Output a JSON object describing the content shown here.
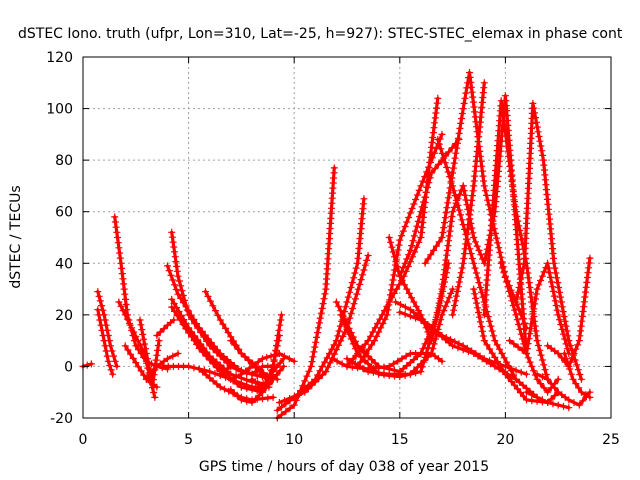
{
  "chart_data": {
    "type": "scatter",
    "title": "dSTEC Iono. truth (ufpr, Lon=310, Lat=-25, h=927): STEC-STEC_elemax in phase cont",
    "xlabel": "GPS time / hours of day 038 of year 2015",
    "ylabel": "dSTEC  / TECUs",
    "xlim": [
      0,
      25
    ],
    "ylim": [
      -20,
      120
    ],
    "xticks": [
      0,
      5,
      10,
      15,
      20,
      25
    ],
    "yticks": [
      -20,
      0,
      20,
      40,
      60,
      80,
      100,
      120
    ],
    "xtick_labels": [
      "0",
      "5",
      "10",
      "15",
      "20",
      "25"
    ],
    "ytick_labels": [
      "-20",
      "0",
      "20",
      "40",
      "60",
      "80",
      "100",
      "120"
    ],
    "grid": true,
    "marker": "+",
    "color": "#ff0000",
    "series": [
      {
        "x": [
          0.0,
          0.2,
          0.4
        ],
        "y": [
          0,
          0.5,
          1
        ]
      },
      {
        "x": [
          0.7,
          1.0,
          1.3,
          1.6
        ],
        "y": [
          29,
          20,
          8,
          0
        ]
      },
      {
        "x": [
          0.7,
          1.0,
          1.2,
          1.4
        ],
        "y": [
          22,
          10,
          2,
          -3
        ]
      },
      {
        "x": [
          1.5,
          1.8,
          2.1,
          2.5,
          3.0,
          3.5,
          4.0
        ],
        "y": [
          58,
          40,
          20,
          8,
          2,
          0,
          -1
        ]
      },
      {
        "x": [
          1.7,
          2.3,
          2.9,
          3.4
        ],
        "y": [
          25,
          15,
          5,
          -12
        ]
      },
      {
        "x": [
          2.7,
          3.0,
          3.3,
          3.6
        ],
        "y": [
          18,
          5,
          -7,
          10
        ]
      },
      {
        "x": [
          3.0,
          3.5,
          4.0,
          4.5
        ],
        "y": [
          -5,
          0,
          3,
          5
        ]
      },
      {
        "x": [
          2.0,
          3.0,
          3.5
        ],
        "y": [
          8,
          -5,
          -8
        ]
      },
      {
        "x": [
          3.5,
          4.0,
          4.3
        ],
        "y": [
          12,
          16,
          18
        ]
      },
      {
        "x": [
          4.2,
          4.5,
          5.0,
          6.0,
          7.0,
          8.0,
          9.0
        ],
        "y": [
          52,
          35,
          20,
          8,
          0,
          -3,
          -5
        ]
      },
      {
        "x": [
          4.0,
          4.5,
          5.5,
          6.5,
          7.5,
          8.5,
          9.0
        ],
        "y": [
          39,
          28,
          15,
          5,
          -2,
          -4,
          -5
        ]
      },
      {
        "x": [
          4.2,
          5.0,
          6.0,
          7.0,
          8.0,
          8.8
        ],
        "y": [
          26,
          15,
          4,
          -3,
          -6,
          -7
        ]
      },
      {
        "x": [
          4.2,
          5.0,
          6.0,
          7.0,
          8.0,
          8.8
        ],
        "y": [
          23,
          13,
          3,
          -5,
          -8,
          -8
        ]
      },
      {
        "x": [
          4.8,
          5.5,
          6.5,
          7.5,
          8.5
        ],
        "y": [
          16,
          7,
          -2,
          -8,
          -9
        ]
      },
      {
        "x": [
          5.8,
          6.5,
          7.5,
          8.5,
          9.2
        ],
        "y": [
          29,
          18,
          5,
          -3,
          -5
        ]
      },
      {
        "x": [
          3.8,
          5.0,
          6.0,
          7.0,
          7.5,
          8.5,
          9.3,
          10.0
        ],
        "y": [
          0,
          0,
          -2,
          -5,
          -3,
          3,
          5,
          2
        ]
      },
      {
        "x": [
          5.5,
          6.5,
          7.5,
          8.0,
          9.0
        ],
        "y": [
          -1,
          -8,
          -12,
          -13,
          -12
        ]
      },
      {
        "x": [
          6.5,
          7.0,
          7.5,
          8.0,
          8.5,
          9.0
        ],
        "y": [
          -3,
          0,
          -2,
          -3,
          0,
          0
        ]
      },
      {
        "x": [
          7.0,
          7.5,
          8.2,
          8.9,
          9.2,
          9.4
        ],
        "y": [
          10,
          5,
          0,
          -5,
          10,
          20
        ]
      },
      {
        "x": [
          7.5,
          8.5,
          9.0,
          9.5
        ],
        "y": [
          -8,
          -10,
          -5,
          0
        ]
      },
      {
        "x": [
          7.0,
          7.5,
          8.0,
          8.5,
          9.0,
          9.3
        ],
        "y": [
          -9,
          -13,
          -14,
          -10,
          0,
          12
        ]
      },
      {
        "x": [
          8.0,
          8.5,
          9.0,
          9.5
        ],
        "y": [
          -5,
          -8,
          -2,
          3
        ]
      },
      {
        "x": [
          9.2,
          10.0,
          10.8,
          11.5,
          11.9
        ],
        "y": [
          -20,
          -15,
          0,
          30,
          77
        ]
      },
      {
        "x": [
          9.2,
          10.0,
          11.0,
          12.0,
          13.0,
          13.3
        ],
        "y": [
          -17,
          -12,
          -5,
          10,
          40,
          65
        ]
      },
      {
        "x": [
          9.3,
          10.5,
          11.5,
          12.5,
          13.5
        ],
        "y": [
          -14,
          -10,
          -2,
          15,
          43
        ]
      },
      {
        "x": [
          11.8,
          12.5,
          13.5,
          14.5,
          15.5,
          16.5,
          17.0
        ],
        "y": [
          3,
          0,
          -1,
          0,
          5,
          5,
          2
        ]
      },
      {
        "x": [
          12.0,
          13.0,
          14.0,
          15.0,
          16.0,
          16.8
        ],
        "y": [
          25,
          8,
          0,
          -2,
          5,
          20
        ]
      },
      {
        "x": [
          12.2,
          13.0,
          14.0,
          15.0,
          16.0,
          16.8,
          17.3
        ],
        "y": [
          20,
          5,
          -3,
          -4,
          -2,
          20,
          40
        ]
      },
      {
        "x": [
          12.5,
          13.5,
          14.5,
          15.5,
          16.5,
          17.0,
          17.5
        ],
        "y": [
          3,
          -2,
          -3,
          -3,
          5,
          20,
          30
        ]
      },
      {
        "x": [
          12.5,
          13.5,
          14.5,
          15.2,
          16.0,
          16.5,
          16.8
        ],
        "y": [
          0,
          10,
          25,
          35,
          50,
          85,
          104
        ]
      },
      {
        "x": [
          13.0,
          13.8,
          14.4,
          15.0,
          16.0,
          17.0
        ],
        "y": [
          0,
          10,
          20,
          49,
          70,
          90
        ]
      },
      {
        "x": [
          14.5,
          15.0,
          16.0,
          16.5,
          17.0,
          17.5,
          18.0
        ],
        "y": [
          50,
          35,
          20,
          10,
          30,
          60,
          70
        ]
      },
      {
        "x": [
          14.8,
          15.5,
          16.5,
          17.5,
          18.5,
          19.5,
          20.5
        ],
        "y": [
          25,
          22,
          15,
          8,
          5,
          0,
          -5
        ]
      },
      {
        "x": [
          15.0,
          16.0,
          17.0,
          18.0,
          19.0,
          20.0,
          21.0
        ],
        "y": [
          21,
          18,
          12,
          8,
          3,
          0,
          -3
        ]
      },
      {
        "x": [
          15.0,
          15.5,
          16.0,
          16.5,
          17.0,
          17.8
        ],
        "y": [
          35,
          45,
          60,
          75,
          80,
          88
        ]
      },
      {
        "x": [
          16.2,
          17.0,
          18.0,
          18.3,
          19.0,
          20.0,
          21.0
        ],
        "y": [
          40,
          50,
          100,
          114,
          70,
          35,
          15
        ]
      },
      {
        "x": [
          16.8,
          17.5,
          18.5,
          19.5,
          20.5,
          21.5,
          22.0
        ],
        "y": [
          88,
          70,
          40,
          10,
          -5,
          -12,
          -14
        ]
      },
      {
        "x": [
          17.5,
          18.0,
          18.5,
          19.0
        ],
        "y": [
          20,
          40,
          70,
          110
        ]
      },
      {
        "x": [
          18.0,
          18.5,
          19.0,
          19.5,
          20.0,
          21.0
        ],
        "y": [
          70,
          50,
          40,
          60,
          105,
          5
        ]
      },
      {
        "x": [
          18.5,
          19.0,
          20.0,
          21.0,
          22.0,
          22.5
        ],
        "y": [
          30,
          10,
          -3,
          -13,
          -14,
          -10
        ]
      },
      {
        "x": [
          19.0,
          19.8,
          20.5,
          21.0,
          21.5,
          22.0
        ],
        "y": [
          20,
          103,
          60,
          40,
          10,
          -5
        ]
      },
      {
        "x": [
          19.8,
          20.5,
          21.0,
          21.5,
          22.0,
          22.5
        ],
        "y": [
          40,
          20,
          5,
          -5,
          -10,
          -5
        ]
      },
      {
        "x": [
          20.2,
          21.0,
          21.5,
          22.0,
          22.5,
          23.0
        ],
        "y": [
          10,
          5,
          30,
          40,
          20,
          5
        ]
      },
      {
        "x": [
          20.5,
          20.9,
          21.3,
          21.8,
          22.3,
          23.0,
          23.6
        ],
        "y": [
          25,
          40,
          102,
          80,
          40,
          10,
          -5
        ]
      },
      {
        "x": [
          21.0,
          21.5,
          22.0,
          22.5,
          23.0
        ],
        "y": [
          -10,
          -12,
          -14,
          -15,
          -16
        ]
      },
      {
        "x": [
          21.5,
          22.0,
          22.5,
          23.0,
          23.5,
          24.0
        ],
        "y": [
          -3,
          -5,
          -10,
          -13,
          -15,
          -10
        ]
      },
      {
        "x": [
          22.0,
          22.5,
          23.0,
          23.5,
          24.0
        ],
        "y": [
          8,
          5,
          0,
          10,
          42
        ]
      },
      {
        "x": [
          22.8,
          23.2,
          23.6,
          24.0
        ],
        "y": [
          5,
          -5,
          -10,
          -12
        ]
      }
    ]
  }
}
